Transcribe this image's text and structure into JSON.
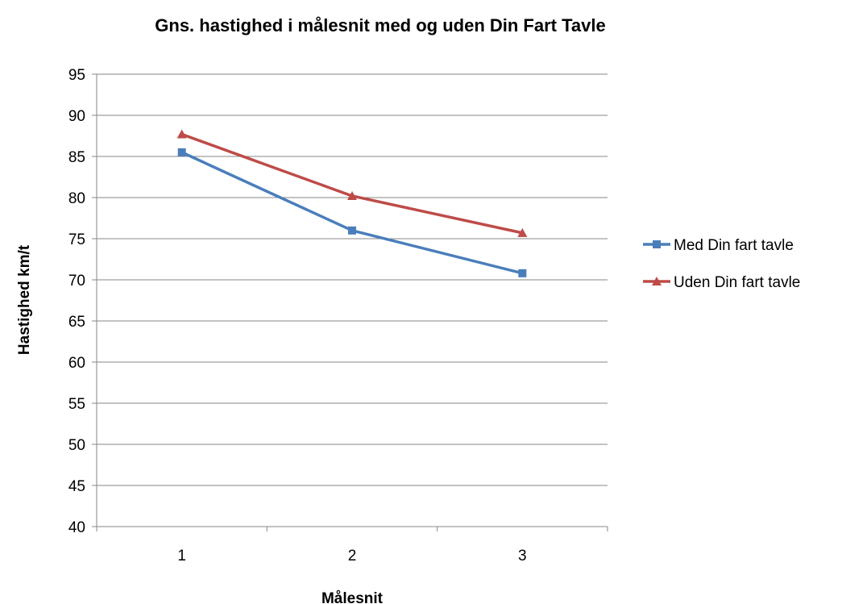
{
  "chart_data": {
    "type": "line",
    "title": "Gns. hastighed i målesnit med og uden Din Fart Tavle",
    "xlabel": "Målesnit",
    "ylabel": "Hastighed km/t",
    "categories": [
      "1",
      "2",
      "3"
    ],
    "ylim": [
      40,
      95
    ],
    "ytick_step": 5,
    "grid": true,
    "legend_position": "right",
    "series": [
      {
        "name": "Med Din fart tavle",
        "values": [
          85.5,
          76.0,
          70.8
        ],
        "color": "#4a7ebb",
        "marker": "square"
      },
      {
        "name": "Uden Din fart tavle",
        "values": [
          87.7,
          80.2,
          75.7
        ],
        "color": "#be4b48",
        "marker": "triangle"
      }
    ]
  }
}
